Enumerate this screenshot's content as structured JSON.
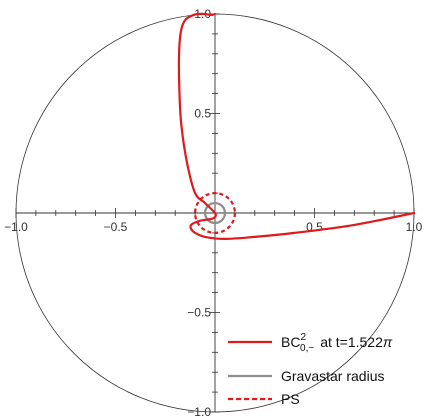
{
  "chart_data": {
    "type": "line",
    "xlim": [
      -1.0,
      1.0
    ],
    "ylim": [
      -1.0,
      1.0
    ],
    "x_ticks": [
      -1.0,
      -0.5,
      0.5,
      1.0
    ],
    "y_ticks": [
      1.0,
      0.5,
      -0.5,
      -1.0
    ],
    "x_tick_labels": [
      "−1.0",
      "−0.5",
      "0.5",
      "1.0"
    ],
    "y_tick_labels": [
      "1.0",
      "0.5",
      "−0.5",
      "−1.0"
    ],
    "grid": false,
    "legend_position": "bottom-right",
    "boundary_circle_radius": 1.0,
    "series": [
      {
        "name": "BC",
        "name_superscript": "2",
        "name_subscript": "0,−",
        "name_suffix": "at t=1.522",
        "name_symbol": "π",
        "color": "#e0191c",
        "style": "solid",
        "x": [
          1.0,
          0.7,
          0.4,
          0.2,
          0.05,
          -0.05,
          -0.1,
          -0.12,
          -0.12,
          -0.08,
          -0.02,
          0.0,
          0.0,
          -0.05,
          -0.1,
          -0.14,
          -0.17,
          -0.18,
          -0.18,
          -0.17,
          -0.15,
          -0.12,
          -0.09,
          -0.05,
          -0.02,
          0.0
        ],
        "y": [
          0.0,
          -0.06,
          -0.1,
          -0.12,
          -0.13,
          -0.12,
          -0.1,
          -0.08,
          -0.06,
          -0.04,
          -0.03,
          -0.02,
          0.0,
          0.05,
          0.1,
          0.25,
          0.45,
          0.65,
          0.82,
          0.92,
          0.97,
          0.99,
          1.0,
          1.0,
          0.995,
          1.0
        ]
      },
      {
        "name": "Gravastar radius",
        "color": "#8c8c8c",
        "style": "solid",
        "radius": 0.05
      },
      {
        "name": "PS",
        "color": "#e0191c",
        "style": "dashed",
        "radius": 0.1
      }
    ]
  },
  "colors": {
    "curve": "#e0191c",
    "gravastar": "#8c8c8c",
    "axis": "#333333",
    "boundary": "#333333"
  }
}
